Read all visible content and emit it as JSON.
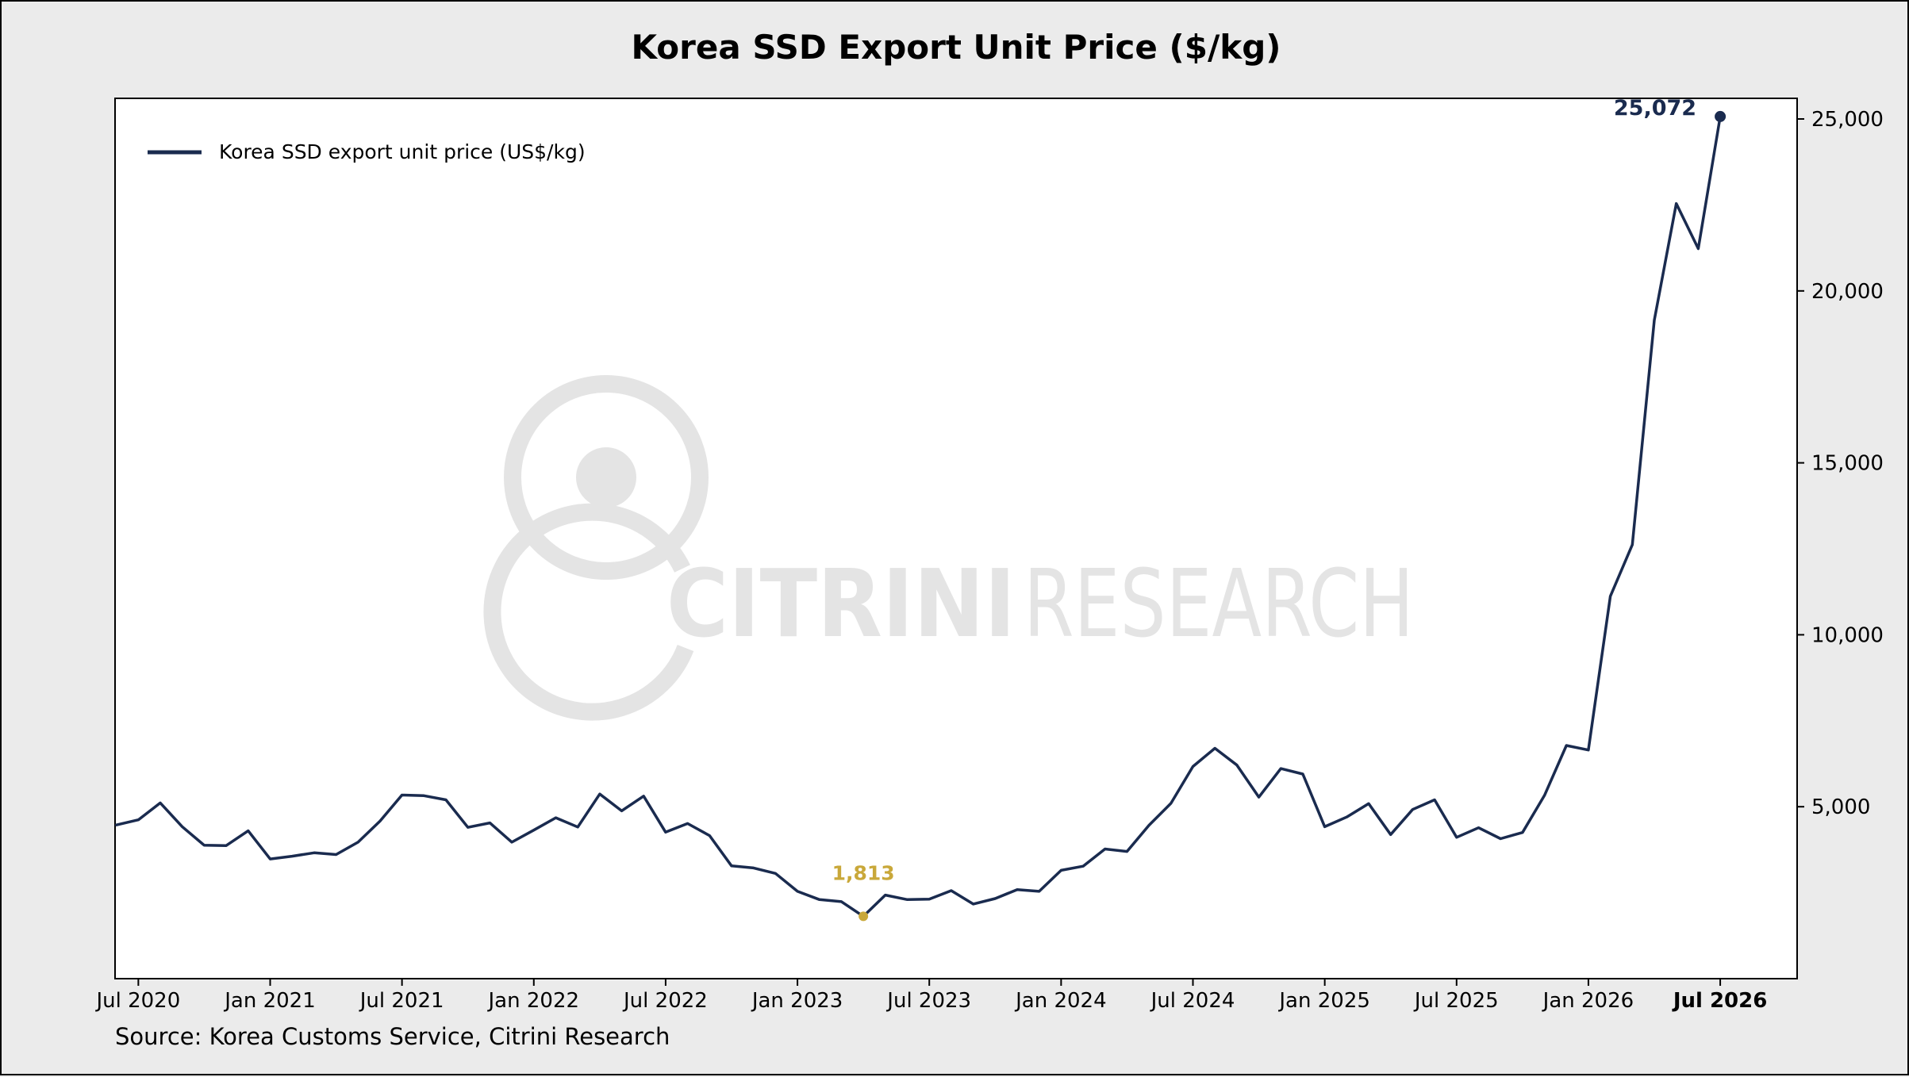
{
  "chart_data": {
    "type": "line",
    "title": "Korea SSD Export Unit Price ($/kg)",
    "xlabel": "",
    "ylabel": "",
    "legend": {
      "position": "top-left"
    },
    "grid": false,
    "x_axis": {
      "tick_labels": [
        "Jul 2020",
        "Jan 2021",
        "Jul 2021",
        "Jan 2022",
        "Jul 2022",
        "Jan 2023",
        "Jul 2023",
        "Jan 2024",
        "Jul 2024",
        "Jan 2025",
        "Jul 2025",
        "Jan 2026",
        "Jul 2026"
      ],
      "bold_tick": "Jul 2026",
      "range": [
        "2020-06",
        "2026-10"
      ]
    },
    "y_axis": {
      "side": "right",
      "tick_labels": [
        "5,000",
        "10,000",
        "15,000",
        "20,000",
        "25,000"
      ],
      "tick_values": [
        5000,
        10000,
        15000,
        20000,
        25000
      ],
      "range": [
        0,
        25600
      ]
    },
    "series": [
      {
        "name": "Korea SSD export unit price (US$/kg)",
        "color": "#1a2b4f",
        "points": [
          [
            "2020-06",
            4470
          ],
          [
            "2020-07",
            4620
          ],
          [
            "2020-08",
            5110
          ],
          [
            "2020-09",
            4420
          ],
          [
            "2020-10",
            3880
          ],
          [
            "2020-11",
            3870
          ],
          [
            "2020-12",
            4300
          ],
          [
            "2021-01",
            3480
          ],
          [
            "2021-02",
            3560
          ],
          [
            "2021-03",
            3660
          ],
          [
            "2021-04",
            3610
          ],
          [
            "2021-05",
            3970
          ],
          [
            "2021-06",
            4580
          ],
          [
            "2021-07",
            5340
          ],
          [
            "2021-08",
            5320
          ],
          [
            "2021-09",
            5200
          ],
          [
            "2021-10",
            4400
          ],
          [
            "2021-11",
            4530
          ],
          [
            "2021-12",
            3970
          ],
          [
            "2022-01",
            4320
          ],
          [
            "2022-02",
            4680
          ],
          [
            "2022-03",
            4410
          ],
          [
            "2022-04",
            5370
          ],
          [
            "2022-05",
            4880
          ],
          [
            "2022-06",
            5310
          ],
          [
            "2022-07",
            4260
          ],
          [
            "2022-08",
            4510
          ],
          [
            "2022-09",
            4160
          ],
          [
            "2022-10",
            3280
          ],
          [
            "2022-11",
            3220
          ],
          [
            "2022-12",
            3060
          ],
          [
            "2023-01",
            2540
          ],
          [
            "2023-02",
            2300
          ],
          [
            "2023-03",
            2240
          ],
          [
            "2023-04",
            1813
          ],
          [
            "2023-05",
            2430
          ],
          [
            "2023-06",
            2300
          ],
          [
            "2023-07",
            2310
          ],
          [
            "2023-08",
            2560
          ],
          [
            "2023-09",
            2170
          ],
          [
            "2023-10",
            2330
          ],
          [
            "2023-11",
            2590
          ],
          [
            "2023-12",
            2540
          ],
          [
            "2024-01",
            3150
          ],
          [
            "2024-02",
            3270
          ],
          [
            "2024-03",
            3770
          ],
          [
            "2024-04",
            3700
          ],
          [
            "2024-05",
            4460
          ],
          [
            "2024-06",
            5100
          ],
          [
            "2024-07",
            6170
          ],
          [
            "2024-08",
            6700
          ],
          [
            "2024-09",
            6210
          ],
          [
            "2024-10",
            5280
          ],
          [
            "2024-11",
            6110
          ],
          [
            "2024-12",
            5950
          ],
          [
            "2025-01",
            4420
          ],
          [
            "2025-02",
            4700
          ],
          [
            "2025-03",
            5090
          ],
          [
            "2025-04",
            4190
          ],
          [
            "2025-05",
            4920
          ],
          [
            "2025-06",
            5200
          ],
          [
            "2025-07",
            4110
          ],
          [
            "2025-08",
            4390
          ],
          [
            "2025-09",
            4070
          ],
          [
            "2025-10",
            4250
          ],
          [
            "2025-11",
            5330
          ],
          [
            "2025-12",
            6780
          ],
          [
            "2026-01",
            6650
          ],
          [
            "2026-02",
            11120
          ],
          [
            "2026-03",
            12620
          ],
          [
            "2026-04",
            19150
          ],
          [
            "2026-05",
            22540
          ],
          [
            "2026-06",
            21230
          ],
          [
            "2026-07",
            25072
          ]
        ]
      }
    ],
    "annotations": [
      {
        "label": "25,072",
        "x": "2026-07",
        "y": 25072,
        "kind": "max",
        "color": "#1a2b4f"
      },
      {
        "label": "1,813",
        "x": "2023-04",
        "y": 1813,
        "kind": "min",
        "color": "#c9a83a"
      }
    ],
    "source": "Source: Korea Customs Service, Citrini Research",
    "watermark": "CITRINI RESEARCH"
  }
}
